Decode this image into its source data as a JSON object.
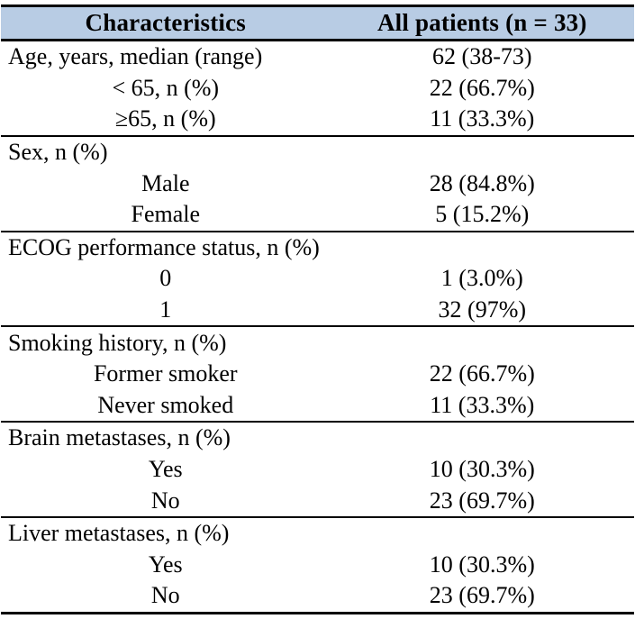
{
  "table": {
    "colors": {
      "header_bg": "#b8cce4",
      "border": "#000000",
      "text": "#000000"
    },
    "header": {
      "col1": "Characteristics",
      "col2": "All patients (n = 33)"
    },
    "sections": [
      {
        "name": "age",
        "rows": [
          {
            "label": "Age, years, median (range)",
            "value": "62 (38-73)",
            "indent": false
          },
          {
            "label": "< 65, n (%)",
            "value": "22 (66.7%)",
            "indent": true
          },
          {
            "label": "≥65, n (%)",
            "value": "11 (33.3%)",
            "indent": true
          }
        ]
      },
      {
        "name": "sex",
        "rows": [
          {
            "label": "Sex, n (%)",
            "value": "",
            "indent": false
          },
          {
            "label": "Male",
            "value": "28 (84.8%)",
            "indent": true
          },
          {
            "label": "Female",
            "value": "5 (15.2%)",
            "indent": true
          }
        ]
      },
      {
        "name": "ecog",
        "rows": [
          {
            "label": "ECOG performance status, n (%)",
            "value": "",
            "indent": false
          },
          {
            "label": "0",
            "value": "1 (3.0%)",
            "indent": true
          },
          {
            "label": "1",
            "value": "32 (97%)",
            "indent": true
          }
        ]
      },
      {
        "name": "smoking",
        "rows": [
          {
            "label": "Smoking history, n (%)",
            "value": "",
            "indent": false
          },
          {
            "label": "Former smoker",
            "value": "22 (66.7%)",
            "indent": true
          },
          {
            "label": "Never smoked",
            "value": "11 (33.3%)",
            "indent": true
          }
        ]
      },
      {
        "name": "brain-metastases",
        "rows": [
          {
            "label": "Brain metastases, n (%)",
            "value": "",
            "indent": false
          },
          {
            "label": "Yes",
            "value": "10 (30.3%)",
            "indent": true
          },
          {
            "label": "No",
            "value": "23 (69.7%)",
            "indent": true
          }
        ]
      },
      {
        "name": "liver-metastases",
        "rows": [
          {
            "label": "Liver metastases, n (%)",
            "value": "",
            "indent": false
          },
          {
            "label": "Yes",
            "value": "10 (30.3%)",
            "indent": true
          },
          {
            "label": "No",
            "value": "23 (69.7%)",
            "indent": true
          }
        ]
      }
    ]
  }
}
